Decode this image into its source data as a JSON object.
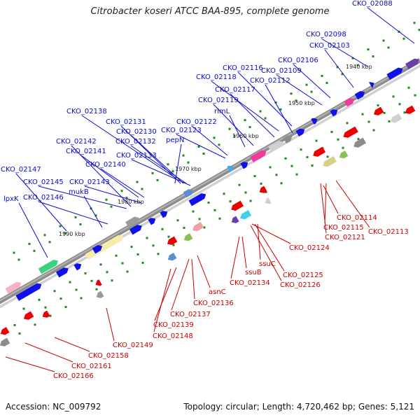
{
  "title": "Citrobacter koseri ATCC BAA-895, complete genome",
  "accession": "Accession: NC_009792",
  "topology": "Topology: circular; Length: 4,720,462 bp; Genes: 5,121",
  "colors": {
    "forward_label": "#0b0bcc",
    "reverse_label": "#cc0000",
    "forward_gene": "#1010e8",
    "reverse_gene": "#ee0000",
    "backbone": "#8c8c8c",
    "tick": "#1e8c1e"
  },
  "ticks": [
    "1990 kbp",
    "1980 kbp",
    "1970 kbp",
    "1960 kbp",
    "1950 kbp",
    "1940 kbp"
  ],
  "forward_labels": [
    "CKO_02088",
    "CKO_02098",
    "CKO_02103",
    "CKO_02106",
    "CKO_02109",
    "CKO_02116",
    "CKO_02118",
    "CKO_02112",
    "CKO_02117",
    "CKO_02119",
    "rlmL",
    "CKO_02122",
    "CKO_02123",
    "pepN",
    "CKO_02138",
    "CKO_02131",
    "CKO_02130",
    "CKO_02132",
    "CKO_02133",
    "CKO_02142",
    "CKO_02141",
    "CKO_02140",
    "CKO_02147",
    "CKO_02145",
    "CKO_02143",
    "mukB",
    "lpxK",
    "CKO_02146"
  ],
  "reverse_labels": [
    "CKO_02114",
    "CKO_02115",
    "CKO_02113",
    "CKO_02121",
    "CKO_02124",
    "ssuC",
    "CKO_02125",
    "ssuB",
    "CKO_02126",
    "CKO_02134",
    "asnC",
    "CKO_02136",
    "CKO_02137",
    "CKO_02139",
    "CKO_02148",
    "CKO_02149",
    "CKO_02158",
    "CKO_02161",
    "CKO_02166"
  ]
}
